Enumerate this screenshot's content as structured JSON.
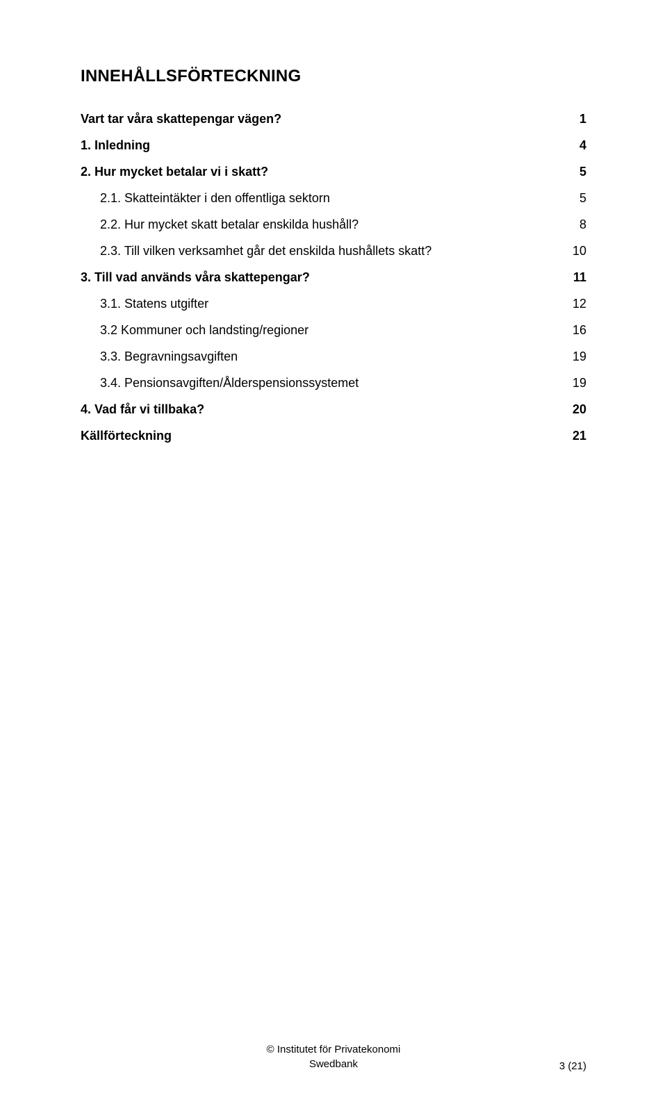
{
  "colors": {
    "background": "#ffffff",
    "text": "#000000"
  },
  "typography": {
    "font_family": "Arial",
    "heading_fontsize_pt": 18,
    "heading_fontweight": "bold",
    "body_fontsize_pt": 13.5,
    "footer_fontsize_pt": 11
  },
  "heading": "INNEHÅLLSFÖRTECKNING",
  "toc": [
    {
      "text": "Vart tar våra skattepengar vägen?",
      "page": "1",
      "bold": true,
      "indent": 0
    },
    {
      "text": "1. Inledning",
      "page": "4",
      "bold": true,
      "indent": 0
    },
    {
      "text": "2. Hur mycket betalar vi i skatt?",
      "page": "5",
      "bold": true,
      "indent": 0
    },
    {
      "text": "2.1. Skatteintäkter i den offentliga sektorn",
      "page": "5",
      "bold": false,
      "indent": 1
    },
    {
      "text": "2.2. Hur mycket skatt betalar enskilda hushåll?",
      "page": "8",
      "bold": false,
      "indent": 1
    },
    {
      "text": "2.3. Till vilken verksamhet går det enskilda hushållets skatt?",
      "page": "10",
      "bold": false,
      "indent": 1
    },
    {
      "text": "3. Till vad används våra skattepengar?",
      "page": "11",
      "bold": true,
      "indent": 0
    },
    {
      "text": "3.1. Statens utgifter",
      "page": "12",
      "bold": false,
      "indent": 1
    },
    {
      "text": "3.2 Kommuner och landsting/regioner",
      "page": "16",
      "bold": false,
      "indent": 1
    },
    {
      "text": "3.3. Begravningsavgiften",
      "page": "19",
      "bold": false,
      "indent": 1
    },
    {
      "text": "3.4. Pensionsavgiften/Ålderspensionssystemet",
      "page": "19",
      "bold": false,
      "indent": 1
    },
    {
      "text": "4. Vad får vi tillbaka?",
      "page": "20",
      "bold": true,
      "indent": 0
    },
    {
      "text": "Källförteckning",
      "page": "21",
      "bold": true,
      "indent": 0
    }
  ],
  "footer": {
    "line1": "© Institutet för Privatekonomi",
    "line2": "Swedbank",
    "page_indicator": "3 (21)"
  }
}
